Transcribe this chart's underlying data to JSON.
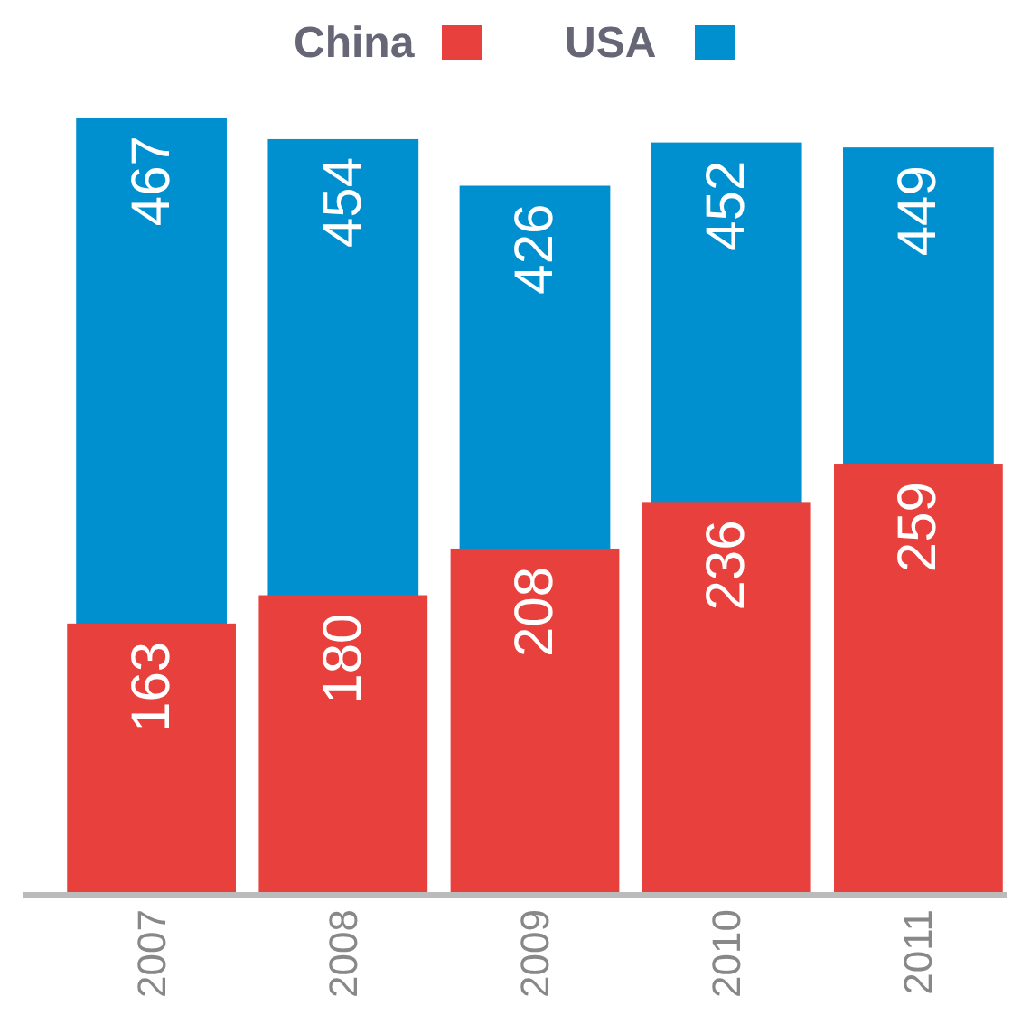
{
  "chart_data": {
    "type": "bar",
    "categories": [
      "2007",
      "2008",
      "2009",
      "2010",
      "2011"
    ],
    "series": [
      {
        "name": "China",
        "color": "#e8403c",
        "values": [
          163,
          180,
          208,
          236,
          259
        ]
      },
      {
        "name": "USA",
        "color": "#0090d0",
        "values": [
          467,
          454,
          426,
          452,
          449
        ]
      }
    ],
    "data_labels": true,
    "legend": "top",
    "tick_labels": "x"
  }
}
